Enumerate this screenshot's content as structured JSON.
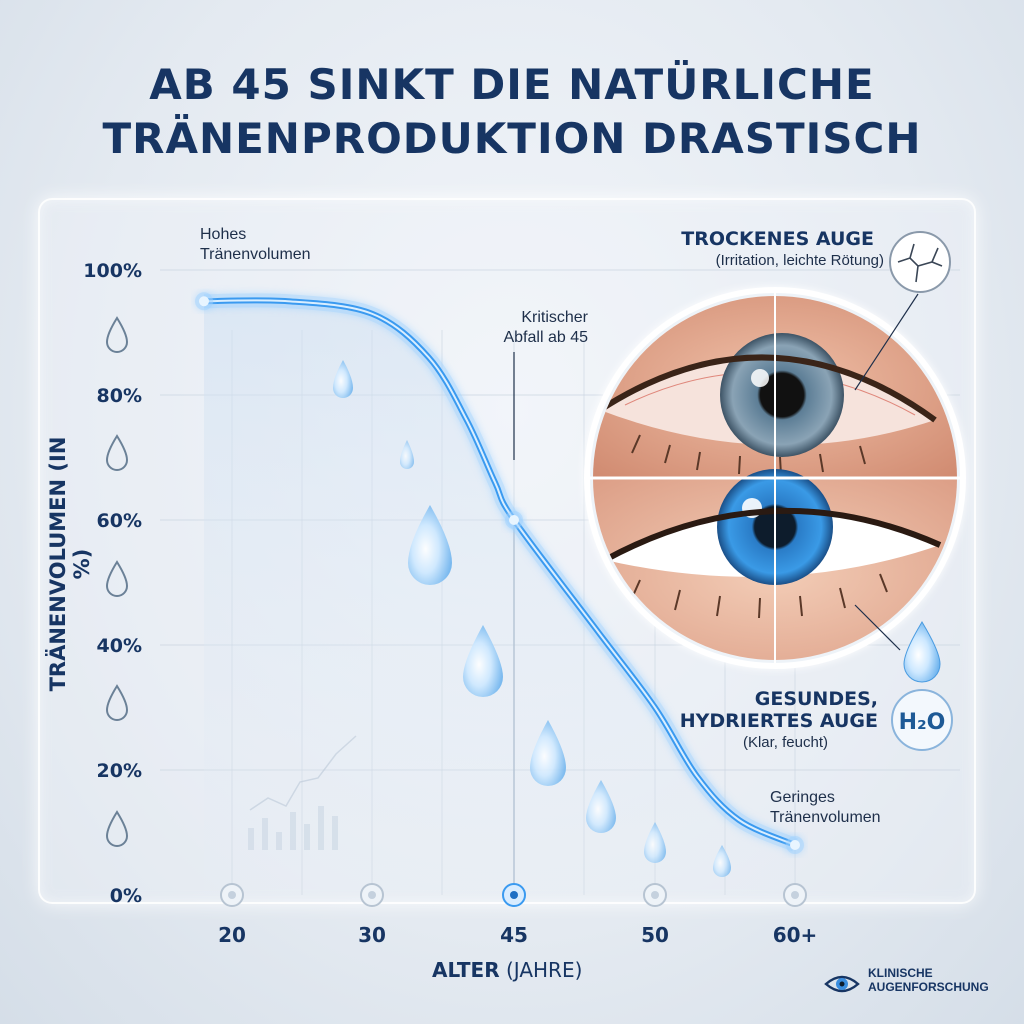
{
  "title_line1": "AB 45 SINKT DIE NATÜRLICHE",
  "title_line2": "TRÄNENPRODUKTION DRASTISCH",
  "annotations": {
    "high_line1": "Hohes",
    "high_line2": "Tränenvolumen",
    "critical_line1": "Kritischer",
    "critical_line2": "Abfall ab 45",
    "low_line1": "Geringes",
    "low_line2": "Tränenvolumen"
  },
  "eye_comparison": {
    "dry_title": "TROCKENES AUGE",
    "dry_subtitle": "(Irritation, leichte Rötung)",
    "healthy_title_line1": "GESUNDES,",
    "healthy_title_line2": "HYDRIERTES AUGE",
    "healthy_subtitle": "(Klar, feucht)",
    "h2o_label": "H₂O"
  },
  "brand": {
    "line1": "KLINISCHE",
    "line2": "AUGENFORSCHUNG"
  },
  "colors": {
    "curve": "#3a9af0",
    "curve_glow": "#9fd2ff",
    "title": "#173563",
    "grid": "#c9d4e0"
  },
  "chart_data": {
    "type": "line",
    "xlabel_bold": "ALTER",
    "xlabel_rest": " (JAHRE)",
    "ylabel": "TRÄNENVOLUMEN (IN %)",
    "x_ticks": [
      "20",
      "30",
      "45",
      "50",
      "60+"
    ],
    "y_ticks": [
      "0%",
      "20%",
      "40%",
      "60%",
      "80%",
      "100%"
    ],
    "ylim": [
      0,
      100
    ],
    "grid": true,
    "series": [
      {
        "values": [
          {
            "x": 18,
            "y": 95
          },
          {
            "x": 24,
            "y": 95
          },
          {
            "x": 30,
            "y": 93
          },
          {
            "x": 36,
            "y": 86
          },
          {
            "x": 40,
            "y": 76
          },
          {
            "x": 43,
            "y": 66
          },
          {
            "x": 45,
            "y": 60
          },
          {
            "x": 48,
            "y": 42
          },
          {
            "x": 50,
            "y": 30
          },
          {
            "x": 53,
            "y": 19
          },
          {
            "x": 56,
            "y": 12
          },
          {
            "x": 60,
            "y": 8
          }
        ]
      }
    ],
    "highlight_x": 45
  }
}
